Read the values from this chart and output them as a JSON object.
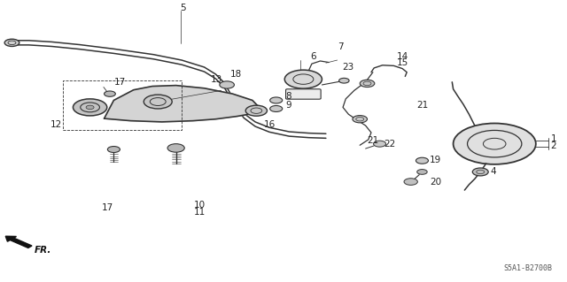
{
  "bg_color": "#ffffff",
  "diagram_code": "S5A1-B2700B",
  "fig_width": 6.4,
  "fig_height": 3.19,
  "dpi": 100,
  "line_color": "#333333",
  "label_color": "#222222",
  "label_fontsize": 7.5
}
